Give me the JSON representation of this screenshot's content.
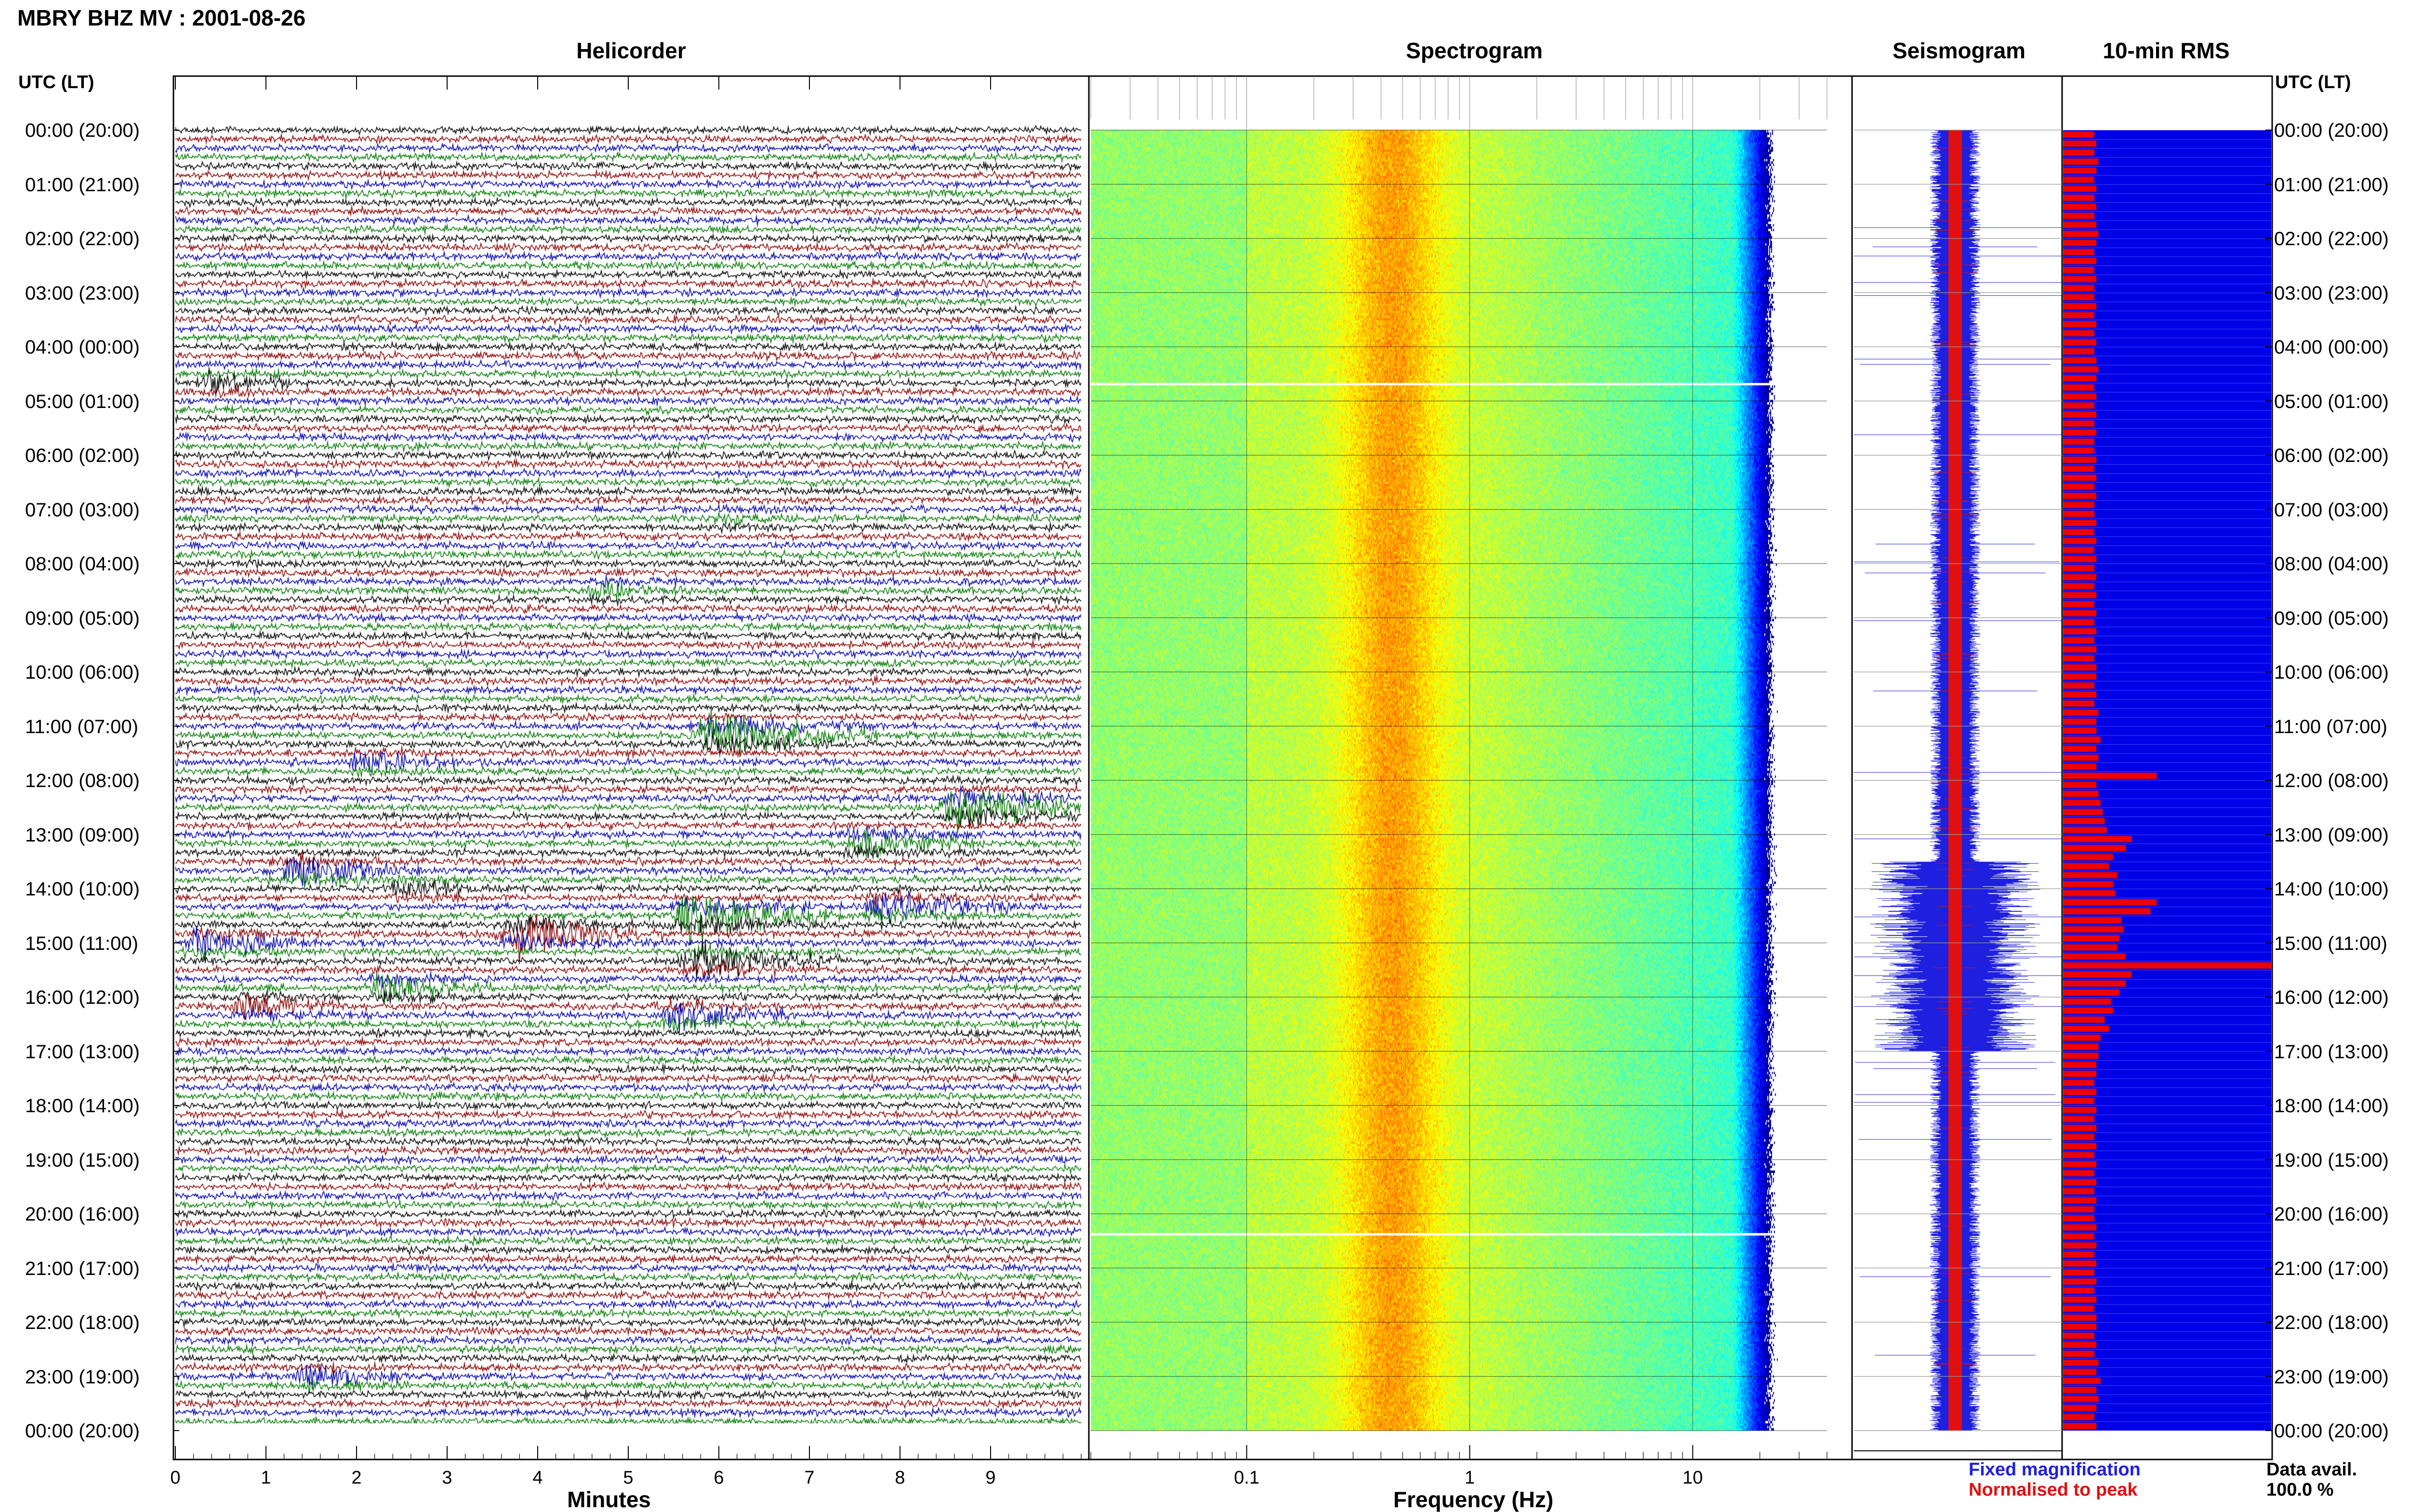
{
  "header": {
    "title": "MBRY BHZ MV : 2001-08-26"
  },
  "panels": {
    "helicorder": "Helicorder",
    "spectrogram": "Spectrogram",
    "seismogram": "Seismogram",
    "rms": "10-min RMS"
  },
  "axis": {
    "left_time_header": "UTC (LT)",
    "right_time_header": "UTC (LT)",
    "time_labels": [
      "00:00 (20:00)",
      "01:00 (21:00)",
      "02:00 (22:00)",
      "03:00 (23:00)",
      "04:00 (00:00)",
      "05:00 (01:00)",
      "06:00 (02:00)",
      "07:00 (03:00)",
      "08:00 (04:00)",
      "09:00 (05:00)",
      "10:00 (06:00)",
      "11:00 (07:00)",
      "12:00 (08:00)",
      "13:00 (09:00)",
      "14:00 (10:00)",
      "15:00 (11:00)",
      "16:00 (12:00)",
      "17:00 (13:00)",
      "18:00 (14:00)",
      "19:00 (15:00)",
      "20:00 (16:00)",
      "21:00 (17:00)",
      "22:00 (18:00)",
      "23:00 (19:00)",
      "00:00 (20:00)"
    ],
    "minutes_label": "Minutes",
    "minute_ticks": [
      "0",
      "1",
      "2",
      "3",
      "4",
      "5",
      "6",
      "7",
      "8",
      "9"
    ],
    "frequency_label": "Frequency (Hz)",
    "frequency_ticks": [
      "0.1",
      "1",
      "10"
    ]
  },
  "legend": {
    "fixed": "Fixed magnification",
    "normalised": "Normalised to peak",
    "fixed_color": "#1f1fdf",
    "normalised_color": "#e01010"
  },
  "availability": {
    "label": "Data avail.",
    "value": "100.0 %"
  },
  "colors": {
    "trace_cycle": [
      "#000000",
      "#8b0000",
      "#0000a8",
      "#007a00"
    ],
    "rms_fill": "#0000e6",
    "rms_bar": "#ee0000",
    "seismo_fixed": "#1f1fdf",
    "seismo_norm": "#e01010"
  },
  "chart_data": [
    {
      "type": "line",
      "title": "Helicorder",
      "xlabel": "Minutes",
      "xlim": [
        0,
        10
      ],
      "ylim": [
        "00:00",
        "24:00"
      ],
      "rows_per_hour": 6,
      "traces": 144,
      "events": [
        {
          "time_utc": "04:40",
          "minute": 0.4,
          "amplitude": 0.4
        },
        {
          "time_utc": "07:10",
          "minute": 6.0,
          "amplitude": 0.25
        },
        {
          "time_utc": "08:30",
          "minute": 4.7,
          "amplitude": 0.3
        },
        {
          "time_utc": "11:10",
          "minute": 6.0,
          "amplitude": 1.0
        },
        {
          "time_utc": "11:40",
          "minute": 2.1,
          "amplitude": 0.45
        },
        {
          "time_utc": "12:30",
          "minute": 8.7,
          "amplitude": 1.0
        },
        {
          "time_utc": "13:10",
          "minute": 7.6,
          "amplitude": 0.6
        },
        {
          "time_utc": "13:40",
          "minute": 1.3,
          "amplitude": 0.75
        },
        {
          "time_utc": "14:00",
          "minute": 2.5,
          "amplitude": 0.4
        },
        {
          "time_utc": "14:20",
          "minute": 7.8,
          "amplitude": 0.7
        },
        {
          "time_utc": "14:30",
          "minute": 5.7,
          "amplitude": 1.0
        },
        {
          "time_utc": "14:50",
          "minute": 3.8,
          "amplitude": 0.9
        },
        {
          "time_utc": "15:00",
          "minute": 0.3,
          "amplitude": 0.6
        },
        {
          "time_utc": "15:20",
          "minute": 5.8,
          "amplitude": 0.8
        },
        {
          "time_utc": "15:50",
          "minute": 2.3,
          "amplitude": 0.5
        },
        {
          "time_utc": "16:10",
          "minute": 0.8,
          "amplitude": 0.5
        },
        {
          "time_utc": "16:20",
          "minute": 5.5,
          "amplitude": 0.6
        },
        {
          "time_utc": "23:00",
          "minute": 1.5,
          "amplitude": 0.45
        }
      ]
    },
    {
      "type": "heatmap",
      "title": "Spectrogram",
      "xlabel": "Frequency (Hz)",
      "xscale": "log",
      "xlim": [
        0.02,
        40
      ],
      "x_ticks": [
        0.1,
        1,
        10
      ],
      "peak_frequency_hz": 0.45,
      "rolloff_frequency_hz": 15,
      "data_gaps_utc": [
        "04:40",
        "20:20"
      ]
    },
    {
      "type": "line",
      "title": "Seismogram",
      "series": [
        {
          "name": "Fixed magnification",
          "color": "#1f1fdf"
        },
        {
          "name": "Normalised to peak",
          "color": "#e01010"
        }
      ],
      "active_window_utc": [
        "13:30",
        "17:00"
      ]
    },
    {
      "type": "bar",
      "title": "10-min RMS",
      "categories_interval_minutes": 10,
      "bars": 144,
      "values_fraction_of_max": [
        0.15,
        0.16,
        0.15,
        0.17,
        0.16,
        0.15,
        0.16,
        0.15,
        0.16,
        0.15,
        0.16,
        0.17,
        0.16,
        0.15,
        0.16,
        0.15,
        0.16,
        0.15,
        0.15,
        0.16,
        0.15,
        0.16,
        0.15,
        0.16,
        0.15,
        0.16,
        0.17,
        0.16,
        0.15,
        0.16,
        0.15,
        0.16,
        0.15,
        0.16,
        0.15,
        0.15,
        0.16,
        0.15,
        0.16,
        0.15,
        0.16,
        0.15,
        0.15,
        0.16,
        0.15,
        0.16,
        0.15,
        0.16,
        0.15,
        0.16,
        0.15,
        0.16,
        0.15,
        0.16,
        0.15,
        0.16,
        0.15,
        0.16,
        0.15,
        0.16,
        0.16,
        0.15,
        0.16,
        0.15,
        0.17,
        0.16,
        0.16,
        0.18,
        0.16,
        0.17,
        0.16,
        0.45,
        0.16,
        0.17,
        0.18,
        0.19,
        0.2,
        0.21,
        0.33,
        0.3,
        0.24,
        0.22,
        0.26,
        0.24,
        0.25,
        0.45,
        0.42,
        0.28,
        0.29,
        0.27,
        0.26,
        0.3,
        1.0,
        0.33,
        0.3,
        0.27,
        0.23,
        0.24,
        0.2,
        0.22,
        0.18,
        0.17,
        0.17,
        0.16,
        0.16,
        0.15,
        0.16,
        0.15,
        0.16,
        0.15,
        0.16,
        0.15,
        0.16,
        0.15,
        0.16,
        0.15,
        0.16,
        0.15,
        0.16,
        0.15,
        0.15,
        0.16,
        0.15,
        0.16,
        0.15,
        0.16,
        0.15,
        0.16,
        0.15,
        0.16,
        0.15,
        0.16,
        0.16,
        0.15,
        0.16,
        0.15,
        0.17,
        0.16,
        0.18,
        0.16,
        0.17,
        0.16,
        0.15,
        0.16
      ]
    }
  ]
}
